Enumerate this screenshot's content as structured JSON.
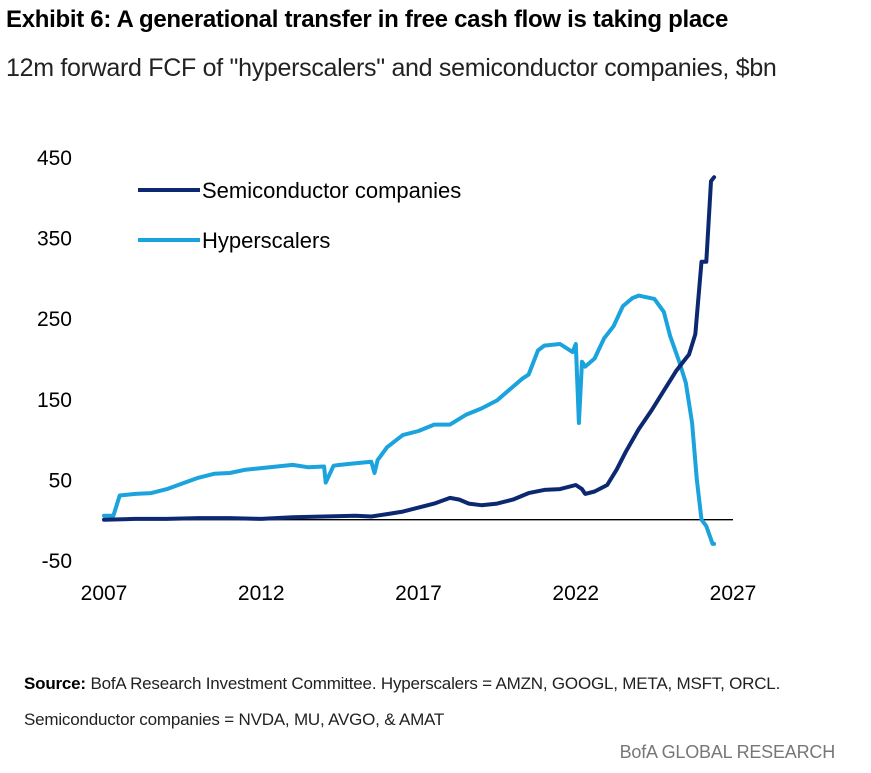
{
  "header": {
    "title": "Exhibit 6: A generational transfer in free cash flow is taking place",
    "subtitle": "12m forward FCF of \"hyperscalers\" and semiconductor companies, $bn"
  },
  "footer": {
    "source_label": "Source:",
    "source_text": "BofA Research Investment Committee. Hyperscalers = AMZN, GOOGL, META, MSFT, ORCL. Semiconductor companies = NVDA, MU, AVGO, & AMAT",
    "brand": "BofA GLOBAL RESEARCH"
  },
  "chart_data": {
    "type": "line",
    "title": "",
    "xlabel": "",
    "ylabel": "",
    "xlim": [
      2007,
      2027
    ],
    "ylim": [
      -50,
      450
    ],
    "x_ticks": [
      2007,
      2012,
      2017,
      2022,
      2027
    ],
    "y_ticks": [
      450,
      350,
      250,
      150,
      50,
      -50
    ],
    "zero_line": true,
    "grid": false,
    "legend_position": "top-left",
    "series": [
      {
        "name": "Semiconductor companies",
        "color": "#0c2870",
        "x": [
          2007.0,
          2008.0,
          2009.0,
          2010.0,
          2011.0,
          2012.0,
          2013.0,
          2014.0,
          2015.0,
          2015.5,
          2016.0,
          2016.5,
          2017.0,
          2017.5,
          2018.0,
          2018.3,
          2018.6,
          2019.0,
          2019.5,
          2020.0,
          2020.5,
          2021.0,
          2021.5,
          2022.0,
          2022.2,
          2022.3,
          2022.6,
          2023.0,
          2023.3,
          2023.6,
          2024.0,
          2024.4,
          2024.8,
          2025.2,
          2025.5,
          2025.6,
          2025.8,
          2026.0,
          2026.15,
          2026.3,
          2026.4
        ],
        "values": [
          0,
          1,
          1,
          2,
          2,
          1,
          3,
          4,
          5,
          4,
          7,
          10,
          15,
          20,
          27,
          25,
          20,
          18,
          20,
          25,
          33,
          37,
          38,
          43,
          38,
          32,
          35,
          43,
          62,
          85,
          112,
          135,
          160,
          185,
          200,
          205,
          230,
          320,
          320,
          420,
          425
        ]
      },
      {
        "name": "Hyperscalers",
        "color": "#1aa3dc",
        "x": [
          2007.0,
          2007.3,
          2007.5,
          2008.0,
          2008.5,
          2009.0,
          2009.5,
          2010.0,
          2010.5,
          2011.0,
          2011.5,
          2012.0,
          2012.5,
          2013.0,
          2013.5,
          2014.0,
          2014.05,
          2014.3,
          2014.5,
          2015.0,
          2015.5,
          2015.6,
          2015.7,
          2016.0,
          2016.5,
          2017.0,
          2017.5,
          2018.0,
          2018.5,
          2019.0,
          2019.5,
          2020.0,
          2020.3,
          2020.5,
          2020.8,
          2021.0,
          2021.5,
          2021.9,
          2022.0,
          2022.1,
          2022.2,
          2022.3,
          2022.6,
          2022.9,
          2023.2,
          2023.5,
          2023.8,
          2024.0,
          2024.5,
          2024.8,
          2025.0,
          2025.3,
          2025.5,
          2025.7,
          2025.85,
          2026.0,
          2026.15,
          2026.35,
          2026.4
        ],
        "values": [
          5,
          5,
          30,
          32,
          33,
          38,
          45,
          52,
          57,
          58,
          62,
          64,
          66,
          68,
          65,
          66,
          46,
          67,
          68,
          70,
          72,
          58,
          74,
          90,
          105,
          110,
          118,
          118,
          130,
          138,
          148,
          165,
          175,
          180,
          210,
          216,
          218,
          208,
          218,
          120,
          196,
          190,
          200,
          225,
          240,
          265,
          275,
          278,
          274,
          258,
          228,
          195,
          170,
          120,
          50,
          0,
          -8,
          -30,
          -30
        ]
      }
    ]
  }
}
